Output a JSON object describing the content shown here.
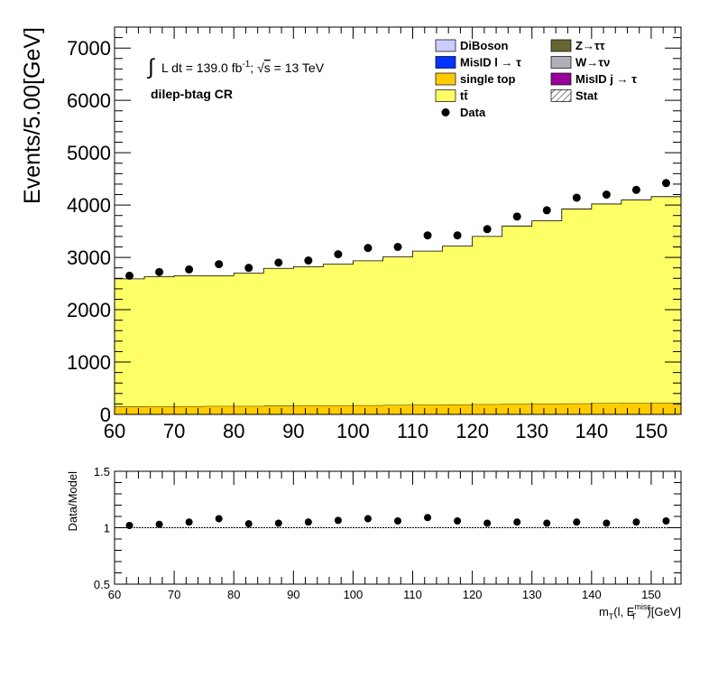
{
  "chart_data": [
    {
      "type": "stacked-histogram",
      "ylabel": "Events/5.00[GeV]",
      "xlim": [
        60,
        155
      ],
      "ylim": [
        0,
        7400
      ],
      "x_ticks": [
        60,
        70,
        80,
        90,
        100,
        110,
        120,
        130,
        140,
        150
      ],
      "y_ticks": [
        0,
        1000,
        2000,
        3000,
        4000,
        5000,
        6000,
        7000
      ],
      "bin_edges": [
        60,
        65,
        70,
        75,
        80,
        85,
        90,
        95,
        100,
        105,
        110,
        115,
        120,
        125,
        130,
        135,
        140,
        145,
        150,
        155
      ],
      "annotations": {
        "lumi_int": "∫",
        "lumi_pre": "L dt = 139.0 fb",
        "lumi_sup": "-1",
        "lumi_mid": ";   √",
        "lumi_s": "s",
        "lumi_post": " = 13 TeV",
        "region": "dilep-btag CR"
      },
      "legend": {
        "placement": "top-right",
        "entries": [
          {
            "label": "DiBoson",
            "color": "#ccccff",
            "kind": "box"
          },
          {
            "label": "Z→ττ",
            "color": "#666633",
            "kind": "box"
          },
          {
            "label": "MisID l → τ",
            "color": "#0033ff",
            "kind": "box"
          },
          {
            "label": "W→τν",
            "color": "#b0b0b8",
            "kind": "box"
          },
          {
            "label": "single top",
            "color": "#ffcc00",
            "kind": "box"
          },
          {
            "label": "MisID j → τ",
            "color": "#990099",
            "kind": "box"
          },
          {
            "label": "tt̄",
            "color": "#ffff66",
            "kind": "box"
          },
          {
            "label": "Stat",
            "color": "#000000",
            "kind": "hatch"
          },
          {
            "label": "Data",
            "color": "#000000",
            "kind": "marker"
          }
        ]
      },
      "series": [
        {
          "name": "single top",
          "color": "#ffcc00",
          "values": [
            150,
            155,
            155,
            160,
            160,
            165,
            170,
            170,
            175,
            180,
            185,
            190,
            195,
            200,
            205,
            210,
            215,
            220,
            225
          ]
        },
        {
          "name": "tt̄",
          "color": "#ffff66",
          "values": [
            2440,
            2475,
            2495,
            2490,
            2540,
            2625,
            2650,
            2700,
            2760,
            2830,
            2935,
            3025,
            3205,
            3400,
            3495,
            3715,
            3805,
            3880,
            3935
          ]
        }
      ],
      "data_points": {
        "name": "Data",
        "x": [
          62.5,
          67.5,
          72.5,
          77.5,
          82.5,
          87.5,
          92.5,
          97.5,
          102.5,
          107.5,
          112.5,
          117.5,
          122.5,
          127.5,
          132.5,
          137.5,
          142.5,
          147.5,
          152.5
        ],
        "y": [
          2650,
          2720,
          2770,
          2870,
          2800,
          2900,
          2940,
          3060,
          3180,
          3200,
          3420,
          3420,
          3540,
          3780,
          3900,
          4140,
          4200,
          4290,
          4420
        ]
      }
    },
    {
      "type": "scatter",
      "ylabel": "Data/Model",
      "xlabel_main": "m",
      "xlabel_sub": "T",
      "xlabel_mid": "(l, E",
      "xlabel_sup": "miss",
      "xlabel_sub2": "T",
      "xlabel_post": ")[GeV]",
      "xlim": [
        60,
        155
      ],
      "ylim": [
        0.5,
        1.5
      ],
      "x_ticks": [
        60,
        70,
        80,
        90,
        100,
        110,
        120,
        130,
        140,
        150
      ],
      "y_ticks": [
        0.5,
        1,
        1.5
      ],
      "reference_line": 1,
      "x": [
        62.5,
        67.5,
        72.5,
        77.5,
        82.5,
        87.5,
        92.5,
        97.5,
        102.5,
        107.5,
        112.5,
        117.5,
        122.5,
        127.5,
        132.5,
        137.5,
        142.5,
        147.5,
        152.5
      ],
      "y": [
        1.02,
        1.03,
        1.05,
        1.08,
        1.035,
        1.04,
        1.05,
        1.065,
        1.08,
        1.06,
        1.09,
        1.06,
        1.04,
        1.05,
        1.04,
        1.05,
        1.04,
        1.05,
        1.06
      ]
    }
  ]
}
